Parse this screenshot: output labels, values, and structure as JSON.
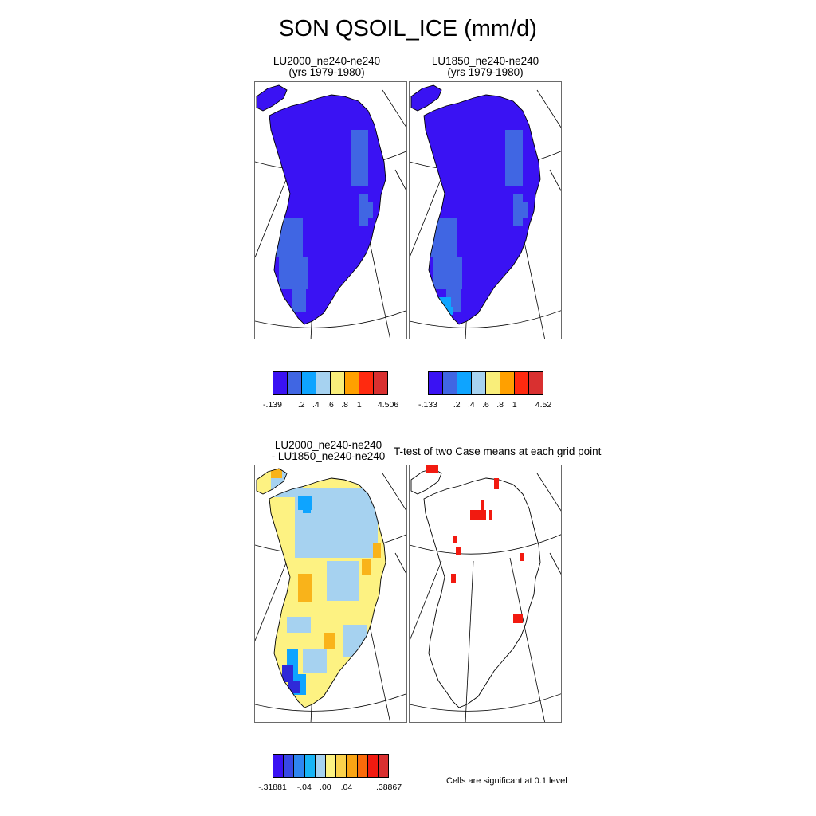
{
  "title": "SON QSOIL_ICE (mm/d)",
  "panels": {
    "p1": {
      "title_line1": "LU2000_ne240-ne240",
      "title_line2": "(yrs 1979-1980)"
    },
    "p2": {
      "title_line1": "LU1850_ne240-ne240",
      "title_line2": "(yrs 1979-1980)"
    },
    "p3": {
      "title_line1": "LU2000_ne240-ne240",
      "title_line2": "- LU1850_ne240-ne240"
    },
    "p4": {
      "title_line1": "T-test of two Case means at each grid point"
    }
  },
  "colorbars": {
    "cb1": {
      "labels": [
        "-.139",
        ".2",
        ".4",
        ".6",
        ".8",
        "1",
        "4.506"
      ],
      "colors": [
        "#3a12f3",
        "#4066e3",
        "#0ea4ff",
        "#a6d2f0",
        "#f9ee7a",
        "#ffa000",
        "#ff2a0f",
        "#d93030"
      ]
    },
    "cb2": {
      "labels": [
        "-.133",
        ".2",
        ".4",
        ".6",
        ".8",
        "1",
        "4.52"
      ],
      "colors": [
        "#3a12f3",
        "#4066e3",
        "#0ea4ff",
        "#a6d2f0",
        "#f9ee7a",
        "#ffa000",
        "#ff2a0f",
        "#d93030"
      ]
    },
    "cb3": {
      "labels": [
        "-.31881",
        "-.04",
        ".00",
        ".04",
        ".38867"
      ],
      "colors": [
        "#3a12f3",
        "#3848e6",
        "#2f86f0",
        "#18b4f5",
        "#a6d2f0",
        "#fdf282",
        "#fbd24c",
        "#f9a414",
        "#fa6a0a",
        "#f21a10",
        "#d93030"
      ]
    }
  },
  "footnote": "Cells are significant at 0.1 level",
  "chart_data": [
    {
      "type": "heatmap",
      "title": "LU2000_ne240-ne240",
      "subtitle": "(yrs 1979-1980)",
      "colorbar_labels": [
        "-.139",
        ".2",
        ".4",
        ".6",
        ".8",
        "1",
        "4.506"
      ]
    },
    {
      "type": "heatmap",
      "title": "LU1850_ne240-ne240",
      "subtitle": "(yrs 1979-1980)",
      "colorbar_labels": [
        "-.133",
        ".2",
        ".4",
        ".6",
        ".8",
        "1",
        "4.52"
      ]
    },
    {
      "type": "heatmap",
      "title": "LU2000_ne240-ne240 - LU1850_ne240-ne240",
      "colorbar_labels": [
        "-.31881",
        "-.04",
        ".00",
        ".04",
        ".38867"
      ]
    },
    {
      "type": "heatmap",
      "title": "T-test of two Case means at each grid point",
      "note": "Cells are significant at 0.1 level"
    }
  ]
}
